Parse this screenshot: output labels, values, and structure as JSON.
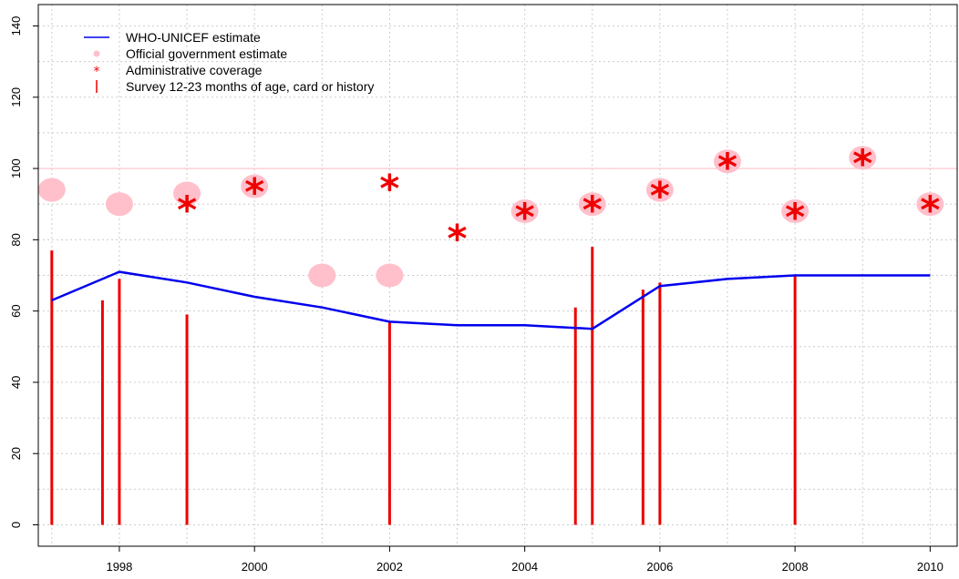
{
  "chart_data": {
    "type": "line",
    "title": "",
    "xlabel": "",
    "ylabel": "",
    "xlim": [
      1996.8,
      2010.4
    ],
    "ylim": [
      -6,
      146
    ],
    "x_ticks": [
      1998,
      2000,
      2002,
      2004,
      2006,
      2008,
      2010
    ],
    "y_ticks": [
      0,
      20,
      40,
      60,
      80,
      100,
      120,
      140
    ],
    "x_tick_labels": [
      "1998",
      "2000",
      "2002",
      "2004",
      "2006",
      "2008",
      "2010"
    ],
    "y_tick_labels": [
      "0",
      "20",
      "40",
      "60",
      "80",
      "100",
      "120",
      "140"
    ],
    "grid": true,
    "reference_line": 100,
    "legend_position": "top-left",
    "legend": [
      {
        "label": "WHO-UNICEF estimate",
        "symbol": "line"
      },
      {
        "label": "Official government estimate",
        "symbol": "dot"
      },
      {
        "label": "Administrative coverage",
        "symbol": "star"
      },
      {
        "label": "Survey 12-23 months of age, card or history",
        "symbol": "bar"
      }
    ],
    "series": [
      {
        "name": "WHO-UNICEF estimate",
        "kind": "line",
        "color": "#0000ee",
        "x": [
          1997,
          1998,
          1999,
          2000,
          2001,
          2002,
          2003,
          2004,
          2005,
          2006,
          2007,
          2008,
          2009,
          2010
        ],
        "y": [
          63,
          71,
          68,
          64,
          61,
          57,
          56,
          56,
          55,
          67,
          69,
          70,
          70,
          70
        ]
      },
      {
        "name": "Official government estimate",
        "kind": "dot",
        "color": "#ffc0cb",
        "x": [
          1997,
          1998,
          1999,
          2000,
          2001,
          2002,
          2004,
          2005,
          2006,
          2007,
          2008,
          2009,
          2010
        ],
        "y": [
          94,
          90,
          93,
          95,
          70,
          70,
          88,
          90,
          94,
          102,
          88,
          103,
          90
        ]
      },
      {
        "name": "Administrative coverage",
        "kind": "star",
        "color": "#ee0000",
        "x": [
          1999,
          2000,
          2002,
          2003,
          2004,
          2005,
          2006,
          2007,
          2008,
          2009,
          2010
        ],
        "y": [
          89,
          94,
          95,
          81,
          87,
          89,
          93,
          101,
          87,
          102,
          89
        ]
      },
      {
        "name": "Survey 12-23 months of age, card or history",
        "kind": "bar",
        "color": "#ee0000",
        "x": [
          1997,
          1997.75,
          1998,
          1999,
          2002,
          2004.75,
          2005,
          2005.75,
          2006,
          2008
        ],
        "y": [
          77,
          63,
          69,
          59,
          57,
          61,
          78,
          66,
          68,
          70
        ]
      }
    ]
  }
}
